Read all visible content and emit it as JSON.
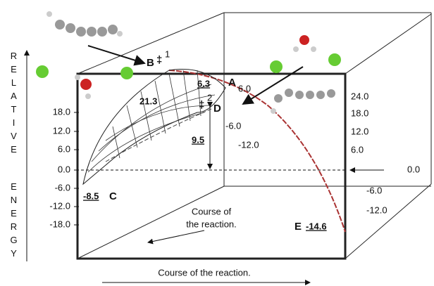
{
  "axis_title": {
    "top": "RELATIVE",
    "bottom": "ENERGY"
  },
  "left_axis": [
    "18.0",
    "12.0",
    "6.0",
    "0.0",
    "-6.0",
    "-12.0",
    "-18.0"
  ],
  "right_axis": [
    "24.0",
    "18.0",
    "12.0",
    "6.0"
  ],
  "inner_axis": [
    "6.0",
    "-6.0",
    "-12.0"
  ],
  "outer_axis": [
    "0.0",
    "-6.0",
    "-12.0"
  ],
  "points": {
    "B": {
      "letter": "B",
      "mark": "‡",
      "index": "1"
    },
    "A": {
      "letter": "A",
      "value": "6.3"
    },
    "D": {
      "letter": "D",
      "mark": "‡",
      "index": "2"
    },
    "C": {
      "letter": "C",
      "value": "-8.5"
    },
    "E": {
      "letter": "E",
      "value": "-14.6"
    }
  },
  "barriers": {
    "ts1": "21.3",
    "ts2": "9.5"
  },
  "x_axis_title": "Course of the reaction.",
  "inner_axis_title": {
    "line1": "Course of",
    "line2": "the reaction."
  }
}
